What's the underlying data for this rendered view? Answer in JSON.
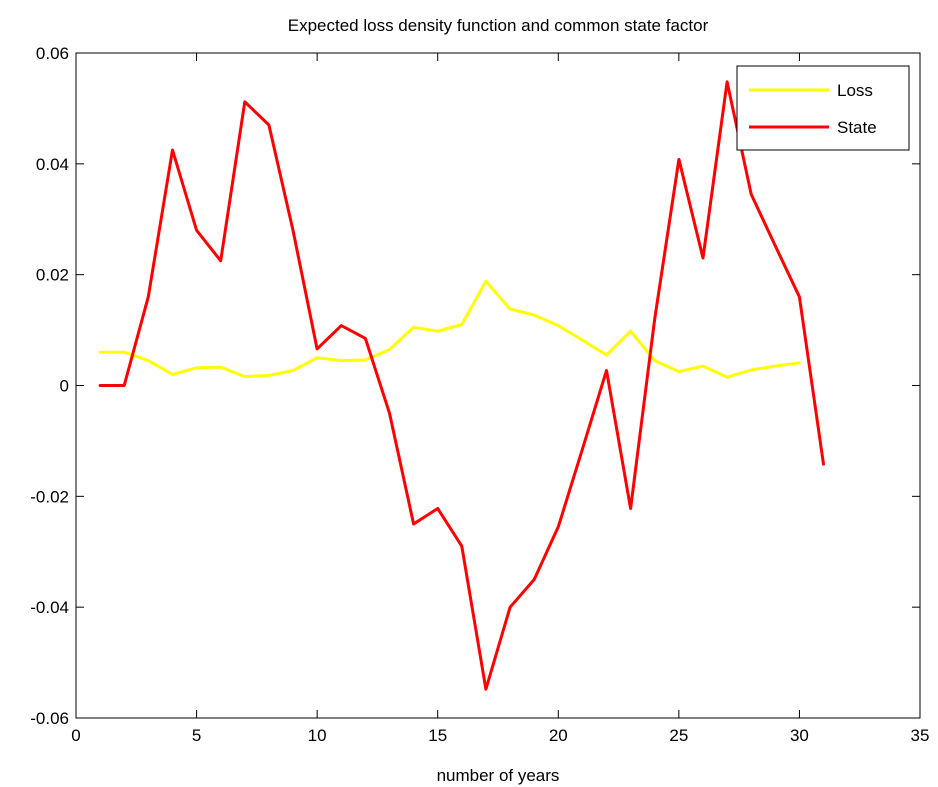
{
  "chart_data": {
    "type": "line",
    "title": "Expected loss density function and common state factor",
    "xlabel": "number of years",
    "ylabel": "",
    "xlim": [
      0,
      35
    ],
    "ylim": [
      -0.06,
      0.06
    ],
    "xticks": [
      0,
      5,
      10,
      15,
      20,
      25,
      30,
      35
    ],
    "xtick_labels": [
      "0",
      "5",
      "10",
      "15",
      "20",
      "25",
      "30",
      "35"
    ],
    "yticks": [
      -0.06,
      -0.04,
      -0.02,
      0,
      0.02,
      0.04,
      0.06
    ],
    "ytick_labels": [
      "-0.06",
      "-0.04",
      "-0.02",
      "0",
      "0.02",
      "0.04",
      "0.06"
    ],
    "grid": false,
    "legend_position": "top-right",
    "series": [
      {
        "name": "Loss",
        "color": "#ffff00",
        "x": [
          1,
          2,
          3,
          4,
          5,
          6,
          7,
          8,
          9,
          10,
          11,
          12,
          13,
          14,
          15,
          16,
          17,
          18,
          19,
          20,
          21,
          22,
          23,
          24,
          25,
          26,
          27,
          28,
          29,
          30
        ],
        "y": [
          0.006,
          0.006,
          0.0045,
          0.002,
          0.0032,
          0.0033,
          0.0016,
          0.0018,
          0.0027,
          0.005,
          0.0045,
          0.0046,
          0.0065,
          0.0105,
          0.0098,
          0.011,
          0.0188,
          0.0138,
          0.0127,
          0.0108,
          0.0082,
          0.0055,
          0.0098,
          0.0045,
          0.0025,
          0.0035,
          0.0015,
          0.0028,
          0.0035,
          0.0041
        ]
      },
      {
        "name": "State",
        "color": "#ff0000",
        "x": [
          1,
          2,
          3,
          4,
          5,
          6,
          7,
          8,
          9,
          10,
          11,
          12,
          13,
          14,
          15,
          16,
          17,
          18,
          19,
          20,
          21,
          22,
          23,
          24,
          25,
          26,
          27,
          28,
          29,
          30,
          31
        ],
        "y": [
          0,
          0,
          0.016,
          0.0425,
          0.028,
          0.0225,
          0.0512,
          0.047,
          0.028,
          0.0066,
          0.0108,
          0.0085,
          -0.005,
          -0.025,
          -0.0222,
          -0.029,
          -0.0548,
          -0.04,
          -0.035,
          -0.0255,
          -0.0115,
          0.0027,
          -0.0222,
          0.012,
          0.0408,
          0.023,
          0.0548,
          0.0345,
          0.0252,
          0.016,
          -0.0142
        ]
      }
    ]
  }
}
